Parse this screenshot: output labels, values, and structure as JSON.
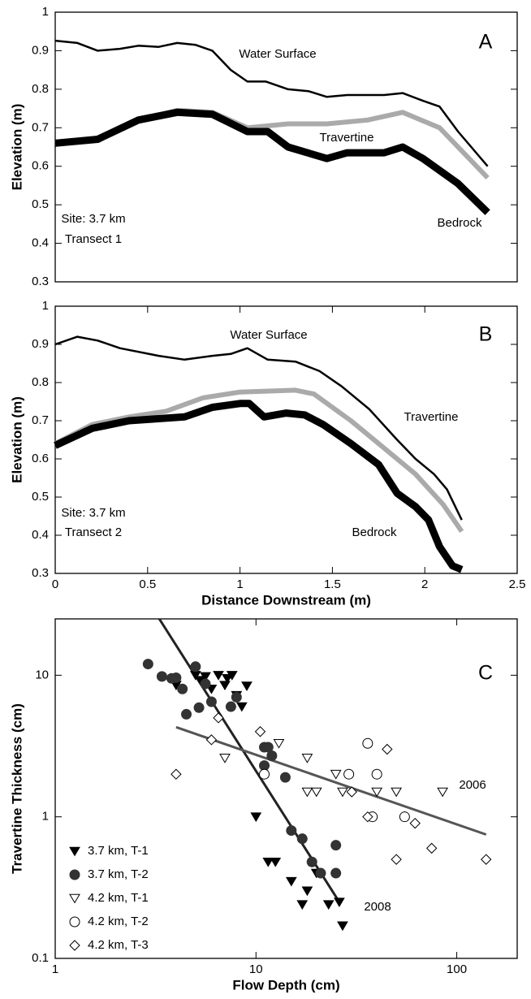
{
  "chart_data": [
    {
      "type": "line",
      "ylabel": "Elevation (m)",
      "xlim": [
        0,
        2.5
      ],
      "ylim": [
        0.3,
        1
      ],
      "yticks": [
        0.3,
        0.4,
        0.5,
        0.6,
        0.7,
        0.8,
        0.9,
        1
      ],
      "annotations": [
        "A",
        "Water Surface",
        "Travertine",
        "Bedrock",
        "Site: 3.7 km",
        "Transect 1"
      ],
      "series": [
        {
          "name": "Water Surface",
          "color": "#000000",
          "x": [
            0,
            0.12,
            0.23,
            0.35,
            0.45,
            0.56,
            0.66,
            0.76,
            0.85,
            0.95,
            1.04,
            1.14,
            1.26,
            1.37,
            1.47,
            1.58,
            1.69,
            1.78,
            1.88,
            1.99,
            2.08,
            2.18,
            2.34
          ],
          "values": [
            0.926,
            0.92,
            0.9,
            0.905,
            0.913,
            0.91,
            0.92,
            0.915,
            0.9,
            0.85,
            0.82,
            0.82,
            0.8,
            0.795,
            0.78,
            0.785,
            0.785,
            0.785,
            0.79,
            0.77,
            0.755,
            0.69,
            0.6
          ]
        },
        {
          "name": "Travertine",
          "color": "#aaaaaa",
          "x": [
            0,
            0.23,
            0.45,
            0.66,
            0.85,
            1.04,
            1.26,
            1.47,
            1.69,
            1.88,
            2.08,
            2.34
          ],
          "values": [
            0.66,
            0.67,
            0.72,
            0.745,
            0.74,
            0.7,
            0.71,
            0.71,
            0.72,
            0.74,
            0.7,
            0.57
          ]
        },
        {
          "name": "Bedrock",
          "color": "#000000",
          "x": [
            0,
            0.23,
            0.45,
            0.66,
            0.85,
            1.04,
            1.15,
            1.26,
            1.47,
            1.58,
            1.78,
            1.88,
            1.99,
            2.18,
            2.34
          ],
          "values": [
            0.66,
            0.67,
            0.72,
            0.74,
            0.735,
            0.69,
            0.69,
            0.65,
            0.62,
            0.635,
            0.635,
            0.65,
            0.62,
            0.555,
            0.48
          ]
        }
      ]
    },
    {
      "type": "line",
      "xlabel": "Distance Downstream (m)",
      "ylabel": "Elevation (m)",
      "xlim": [
        0,
        2.5
      ],
      "ylim": [
        0.3,
        1
      ],
      "xticks": [
        0,
        0.5,
        1,
        1.5,
        2,
        2.5
      ],
      "yticks": [
        0.3,
        0.4,
        0.5,
        0.6,
        0.7,
        0.8,
        0.9,
        1
      ],
      "annotations": [
        "B",
        "Water Surface",
        "Travertine",
        "Bedrock",
        "Site: 3.7 km",
        "Transect 2"
      ],
      "series": [
        {
          "name": "Water Surface",
          "color": "#000000",
          "x": [
            0,
            0.12,
            0.23,
            0.35,
            0.56,
            0.7,
            0.85,
            0.95,
            1.04,
            1.15,
            1.3,
            1.43,
            1.55,
            1.7,
            1.85,
            1.95,
            2.05,
            2.12,
            2.2
          ],
          "values": [
            0.9,
            0.92,
            0.91,
            0.89,
            0.87,
            0.86,
            0.87,
            0.875,
            0.89,
            0.86,
            0.855,
            0.83,
            0.79,
            0.73,
            0.65,
            0.6,
            0.56,
            0.52,
            0.44
          ]
        },
        {
          "name": "Travertine",
          "color": "#aaaaaa",
          "x": [
            0,
            0.2,
            0.4,
            0.6,
            0.8,
            1.0,
            1.3,
            1.4,
            1.6,
            1.8,
            1.95,
            2.1,
            2.2
          ],
          "values": [
            0.64,
            0.69,
            0.71,
            0.725,
            0.76,
            0.775,
            0.78,
            0.77,
            0.7,
            0.62,
            0.56,
            0.48,
            0.41
          ]
        },
        {
          "name": "Bedrock",
          "color": "#000000",
          "x": [
            0,
            0.2,
            0.4,
            0.55,
            0.7,
            0.85,
            1.0,
            1.05,
            1.13,
            1.25,
            1.35,
            1.45,
            1.6,
            1.75,
            1.85,
            1.95,
            2.02,
            2.08,
            2.15,
            2.2
          ],
          "values": [
            0.635,
            0.68,
            0.7,
            0.705,
            0.71,
            0.735,
            0.745,
            0.745,
            0.71,
            0.72,
            0.715,
            0.69,
            0.64,
            0.585,
            0.51,
            0.475,
            0.44,
            0.37,
            0.32,
            0.31
          ]
        }
      ]
    },
    {
      "type": "scatter",
      "xlabel": "Flow Depth (cm)",
      "ylabel": "Travertine Thickness (cm)",
      "xscale": "log",
      "yscale": "log",
      "xlim": [
        1,
        200
      ],
      "ylim": [
        0.1,
        25
      ],
      "xticks": [
        1,
        10,
        100
      ],
      "yticks": [
        0.1,
        1,
        10
      ],
      "legend": "lower left",
      "annotations": [
        "C"
      ],
      "series": [
        {
          "name": "3.7 km, T-1",
          "marker": "triangle-down",
          "filled": true,
          "color": "#000000",
          "x": [
            4.0,
            5,
            5.3,
            5.6,
            6,
            6.5,
            7,
            7.2,
            7.6,
            8,
            8.5,
            9,
            10,
            11.5,
            12.5,
            15,
            17,
            18,
            20,
            23,
            26,
            27
          ],
          "values": [
            8.5,
            10,
            9.2,
            9.8,
            8,
            10,
            8.5,
            9.5,
            10,
            7.2,
            6,
            8.4,
            1.0,
            0.48,
            0.48,
            0.35,
            0.24,
            0.3,
            0.4,
            0.24,
            0.25,
            0.17
          ]
        },
        {
          "name": "3.7 km, T-2",
          "marker": "circle",
          "filled": true,
          "color": "#333333",
          "x": [
            2.9,
            3.4,
            3.8,
            4.0,
            4.3,
            4.5,
            5,
            5.2,
            5.6,
            6,
            7.5,
            8,
            11,
            11,
            11.5,
            12,
            14,
            15,
            17,
            19,
            21,
            25,
            25
          ],
          "values": [
            12,
            9.8,
            9.5,
            9.6,
            8,
            5.3,
            11.5,
            5.9,
            8.7,
            6.5,
            6,
            7,
            2.3,
            3.1,
            3.1,
            2.7,
            1.9,
            0.8,
            0.7,
            0.48,
            0.4,
            0.4,
            0.63
          ]
        },
        {
          "name": "4.2 km, T-1",
          "marker": "triangle-down",
          "filled": false,
          "color": "#000000",
          "x": [
            7,
            13,
            18,
            18,
            20,
            25,
            27,
            40,
            50,
            85
          ],
          "values": [
            2.6,
            3.3,
            2.6,
            1.5,
            1.5,
            2.0,
            1.5,
            1.5,
            1.5,
            1.5
          ]
        },
        {
          "name": "4.2 km, T-2",
          "marker": "circle",
          "filled": false,
          "color": "#000000",
          "x": [
            11,
            29,
            36,
            38,
            40,
            55
          ],
          "values": [
            2.0,
            2.0,
            3.3,
            1.0,
            2.0,
            1.0
          ]
        },
        {
          "name": "4.2 km, T-3",
          "marker": "diamond",
          "filled": false,
          "color": "#000000",
          "x": [
            4,
            6,
            6.5,
            10.5,
            30,
            36,
            45,
            50,
            62,
            75,
            140
          ],
          "values": [
            2.0,
            3.5,
            5,
            4,
            1.5,
            1.0,
            3.0,
            0.5,
            0.9,
            0.6,
            0.5
          ]
        }
      ],
      "fit_lines": [
        {
          "label": "2008",
          "color": "#222222",
          "x": [
            3.3,
            26
          ],
          "values": [
            25,
            0.25
          ]
        },
        {
          "label": "2006",
          "color": "#555555",
          "x": [
            4,
            140
          ],
          "values": [
            4.3,
            0.75
          ]
        }
      ]
    }
  ]
}
